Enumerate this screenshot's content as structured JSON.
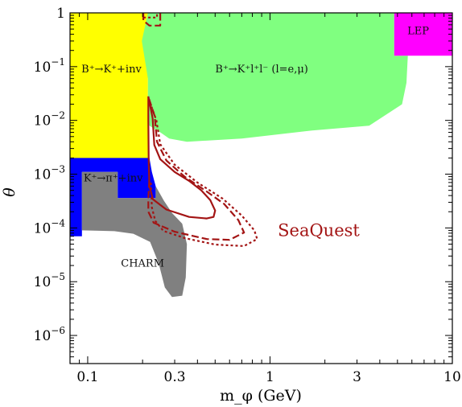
{
  "chart_data": {
    "type": "area",
    "title": "",
    "xlabel": "m_φ (GeV)",
    "ylabel": "θ",
    "x_scale": "log",
    "y_scale": "log",
    "xlim": [
      0.08,
      10
    ],
    "ylim": [
      3e-07,
      1
    ],
    "grid": false,
    "x_ticks": [
      {
        "value": 0.1,
        "label": "0.1"
      },
      {
        "value": 0.3,
        "label": "0.3"
      },
      {
        "value": 1,
        "label": "1"
      },
      {
        "value": 3,
        "label": "3"
      },
      {
        "value": 10,
        "label": "10"
      }
    ],
    "y_ticks": [
      {
        "value": 1,
        "label": "1"
      },
      {
        "value": 0.1,
        "label": "10^-1"
      },
      {
        "value": 0.01,
        "label": "10^-2"
      },
      {
        "value": 0.001,
        "label": "10^-3"
      },
      {
        "value": 0.0001,
        "label": "10^-4"
      },
      {
        "value": 1e-05,
        "label": "10^-5"
      },
      {
        "value": 1e-06,
        "label": "10^-6"
      }
    ],
    "series": [
      {
        "name": "B⁺→K⁺+inv",
        "color": "#ffff00",
        "kind": "region",
        "polygon": [
          [
            0.08,
            1
          ],
          [
            0.214,
            1
          ],
          [
            0.214,
            0.0019
          ],
          [
            0.08,
            0.0019
          ]
        ]
      },
      {
        "name": "B⁺→K⁺l⁺l⁻ (l=e,μ)",
        "color": "#80ff80",
        "kind": "region",
        "polygon": [
          [
            0.214,
            1
          ],
          [
            4.8,
            1
          ],
          [
            4.8,
            0.16
          ],
          [
            5.7,
            0.16
          ],
          [
            5.6,
            0.05
          ],
          [
            5.3,
            0.02
          ],
          [
            3.5,
            0.008
          ],
          [
            1.7,
            0.0065
          ],
          [
            0.7,
            0.0046
          ],
          [
            0.35,
            0.004
          ],
          [
            0.28,
            0.0046
          ],
          [
            0.25,
            0.006
          ],
          [
            0.218,
            0.008
          ],
          [
            0.214,
            0.0115
          ],
          [
            0.214,
            0.06
          ],
          [
            0.198,
            0.3
          ]
        ]
      },
      {
        "name": "LEP",
        "color": "#ff00ff",
        "kind": "region",
        "polygon": [
          [
            4.8,
            1
          ],
          [
            10,
            1
          ],
          [
            10,
            0.16
          ],
          [
            4.8,
            0.16
          ]
        ]
      },
      {
        "name": "K⁺→π⁺+inv",
        "color": "#0000ff",
        "kind": "region",
        "polygon": [
          [
            0.08,
            0.002
          ],
          [
            0.218,
            0.002
          ],
          [
            0.225,
            0.0011
          ],
          [
            0.236,
            0.0006
          ],
          [
            0.236,
            0.00036
          ],
          [
            0.146,
            0.00036
          ],
          [
            0.146,
            0.0011
          ],
          [
            0.093,
            0.0011
          ],
          [
            0.093,
            7e-05
          ],
          [
            0.08,
            7e-05
          ]
        ]
      },
      {
        "name": "CHARM",
        "color": "#808080",
        "kind": "region",
        "polygon": [
          [
            0.093,
            0.0011
          ],
          [
            0.146,
            0.0011
          ],
          [
            0.146,
            0.00036
          ],
          [
            0.236,
            0.00036
          ],
          [
            0.236,
            0.0006
          ],
          [
            0.262,
            0.00032
          ],
          [
            0.29,
            0.00019
          ],
          [
            0.33,
            0.00012
          ],
          [
            0.35,
            5e-05
          ],
          [
            0.345,
            1.2e-05
          ],
          [
            0.33,
            5.5e-06
          ],
          [
            0.29,
            5.2e-06
          ],
          [
            0.265,
            7.8e-06
          ],
          [
            0.245,
            2.2e-05
          ],
          [
            0.22,
            5.5e-05
          ],
          [
            0.178,
            7.8e-05
          ],
          [
            0.14,
            8.7e-05
          ],
          [
            0.093,
            9e-05
          ]
        ]
      },
      {
        "name": "SeaQuest",
        "color": "#a31414",
        "kind": "contour",
        "style": "solid",
        "points": [
          [
            0.215,
            0.028
          ],
          [
            0.227,
            0.011
          ],
          [
            0.232,
            0.0035
          ],
          [
            0.25,
            0.0019
          ],
          [
            0.3,
            0.0011
          ],
          [
            0.36,
            0.00075
          ],
          [
            0.42,
            0.0005
          ],
          [
            0.47,
            0.00033
          ],
          [
            0.5,
            0.00021
          ],
          [
            0.49,
            0.00016
          ],
          [
            0.45,
            0.00015
          ],
          [
            0.36,
            0.00016
          ],
          [
            0.27,
            0.00022
          ],
          [
            0.228,
            0.00034
          ],
          [
            0.218,
            0.0006
          ],
          [
            0.216,
            0.002
          ],
          [
            0.215,
            0.01
          ],
          [
            0.215,
            0.028
          ]
        ]
      },
      {
        "name": "SeaQuest",
        "color": "#a31414",
        "kind": "contour",
        "style": "dashed",
        "points": [
          [
            0.217,
            0.025
          ],
          [
            0.233,
            0.012
          ],
          [
            0.24,
            0.004
          ],
          [
            0.27,
            0.0018
          ],
          [
            0.34,
            0.0009
          ],
          [
            0.44,
            0.0005
          ],
          [
            0.56,
            0.00028
          ],
          [
            0.67,
            0.00014
          ],
          [
            0.72,
            8.2e-05
          ],
          [
            0.6,
            6e-05
          ],
          [
            0.45,
            6.2e-05
          ],
          [
            0.3,
            8.5e-05
          ],
          [
            0.23,
            0.000125
          ],
          [
            0.215,
            0.0002
          ],
          [
            0.215,
            0.00035
          ],
          [
            0.218,
            0.0008
          ]
        ]
      },
      {
        "name": "SeaQuest",
        "color": "#a31414",
        "kind": "contour",
        "style": "dotted",
        "points": [
          [
            0.219,
            0.022
          ],
          [
            0.238,
            0.01
          ],
          [
            0.25,
            0.0036
          ],
          [
            0.3,
            0.0015
          ],
          [
            0.4,
            0.0007
          ],
          [
            0.55,
            0.00035
          ],
          [
            0.7,
            0.00017
          ],
          [
            0.82,
            9e-05
          ],
          [
            0.85,
            6.2e-05
          ],
          [
            0.72,
            4.6e-05
          ],
          [
            0.5,
            4.9e-05
          ],
          [
            0.34,
            6.5e-05
          ],
          [
            0.26,
            8.8e-05
          ],
          [
            0.235,
            0.000135
          ],
          [
            0.225,
            0.00024
          ],
          [
            0.222,
            0.0007
          ]
        ]
      },
      {
        "name": "SeaQuest",
        "color": "#a31414",
        "kind": "contour",
        "style": "dashed",
        "points": [
          [
            0.202,
            1
          ],
          [
            0.202,
            0.72
          ],
          [
            0.218,
            0.58
          ],
          [
            0.25,
            0.58
          ],
          [
            0.25,
            1
          ]
        ]
      },
      {
        "name": "SeaQuest",
        "color": "#a31414",
        "kind": "contour",
        "style": "dotted",
        "points": [
          [
            0.202,
            0.82
          ],
          [
            0.24,
            0.82
          ],
          [
            0.24,
            1
          ]
        ]
      }
    ],
    "annotations": [
      {
        "text": "B⁺→K⁺+inv",
        "x": 0.135,
        "y": 0.078
      },
      {
        "text": "B⁺→K⁺l⁺l⁻ (l=e,μ)",
        "x": 0.9,
        "y": 0.078
      },
      {
        "text": "LEP",
        "x": 6.5,
        "y": 0.4
      },
      {
        "text": "K⁺→π⁺+inv",
        "x": 0.138,
        "y": 0.00074
      },
      {
        "text": "CHARM",
        "x": 0.2,
        "y": 1.9e-05
      },
      {
        "text": "SeaQuest",
        "x": 1.85,
        "y": 7e-05
      }
    ]
  }
}
